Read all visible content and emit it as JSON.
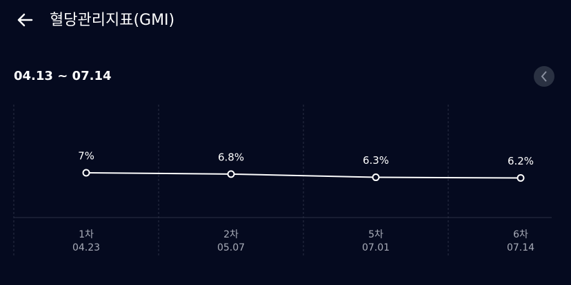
{
  "header": {
    "title": "혈당관리지표(GMI)"
  },
  "period": "04.13 ~ 07.14",
  "chart_data": {
    "type": "line",
    "categories": [
      "1차",
      "2차",
      "5차",
      "6차"
    ],
    "dates": [
      "04.23",
      "05.07",
      "07.01",
      "07.14"
    ],
    "series": [
      {
        "color": "#ffffff",
        "values": [
          7,
          6.8,
          6.3,
          6.2
        ],
        "value_labels": [
          "7%",
          "6.8%",
          "6.3%",
          "6.2%"
        ]
      }
    ]
  }
}
